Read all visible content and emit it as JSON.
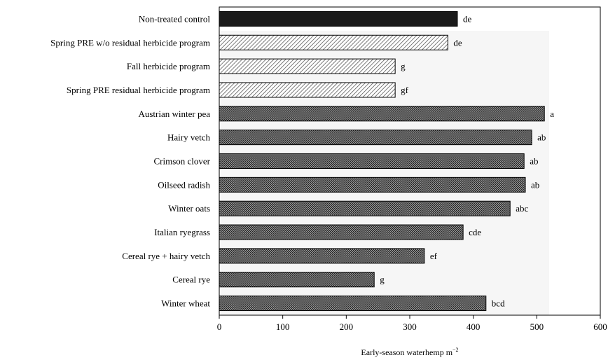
{
  "chart_data": {
    "type": "bar",
    "orientation": "horizontal",
    "categories": [
      "Non-treated control",
      "Spring PRE w/o residual herbicide program",
      "Fall herbicide program",
      "Spring PRE residual herbicide program",
      "Austrian winter pea",
      "Hairy vetch",
      "Crimson clover",
      "Oilseed radish",
      "Winter oats",
      "Italian ryegrass",
      "Cereal rye + hairy vetch",
      "Cereal rye",
      "Winter wheat"
    ],
    "values": [
      375,
      360,
      277,
      277,
      512,
      492,
      480,
      482,
      458,
      384,
      323,
      244,
      420
    ],
    "letters": [
      "de",
      "de",
      "g",
      "gf",
      "a",
      "ab",
      "ab",
      "ab",
      "abc",
      "cde",
      "ef",
      "g",
      "bcd"
    ],
    "groups": [
      "control",
      "herbicide",
      "herbicide",
      "herbicide",
      "cover",
      "cover",
      "cover",
      "cover",
      "cover",
      "cover",
      "cover",
      "cover",
      "cover"
    ],
    "colors": {
      "control": "#1a1a1a",
      "herbicide": "#c9c9c9",
      "cover": "#5e5e5e"
    },
    "xlabel_main": "Early-season waterhemp m",
    "xlabel_exp": "−2",
    "xlim": [
      0,
      600
    ],
    "xticks": [
      0,
      100,
      200,
      300,
      400,
      500,
      600
    ],
    "grid": false,
    "legend": "none"
  }
}
